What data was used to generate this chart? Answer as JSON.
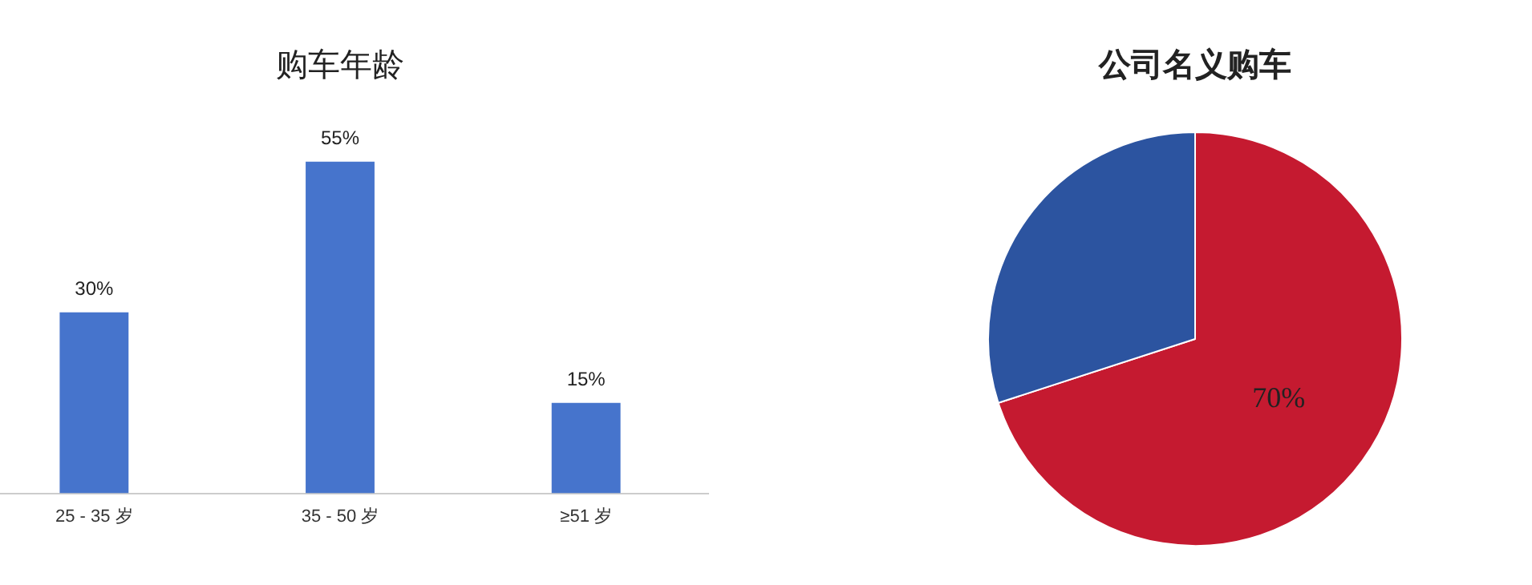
{
  "chart_data": [
    {
      "type": "bar",
      "title": "购车年龄",
      "categories": [
        "25 - 35 岁",
        "35 - 50 岁",
        "≥51 岁"
      ],
      "values": [
        30,
        55,
        15
      ],
      "value_labels": [
        "30%",
        "55%",
        "15%"
      ],
      "color": "#4674cc",
      "tick_labels": "x",
      "grid": false,
      "legend": false
    },
    {
      "type": "pie",
      "title": "公司名义购车",
      "categories": [
        null,
        null
      ],
      "values": [
        70,
        30
      ],
      "colors": [
        "#c51a30",
        "#2c54a0"
      ],
      "value_labels": [
        "70%",
        null
      ],
      "legend": false
    }
  ]
}
